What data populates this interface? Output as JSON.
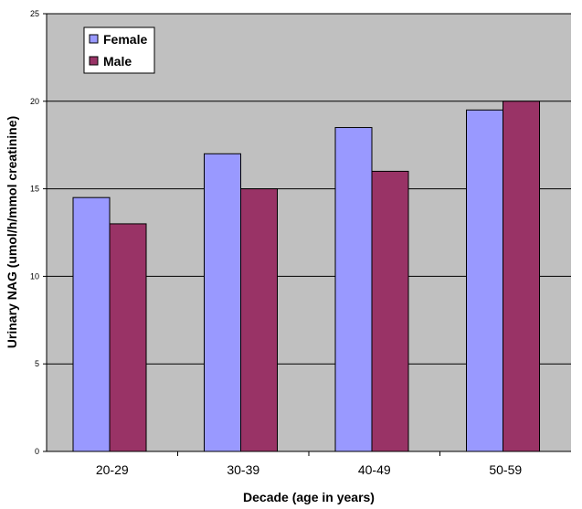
{
  "chart_data": {
    "type": "bar",
    "categories": [
      "20-29",
      "30-39",
      "40-49",
      "50-59"
    ],
    "series": [
      {
        "name": "Female",
        "values": [
          14.5,
          17,
          18.5,
          19.5
        ]
      },
      {
        "name": "Male",
        "values": [
          13,
          15,
          16,
          20
        ]
      }
    ],
    "xlabel": "Decade (age in years)",
    "ylabel": "Urinary NAG (umol/h/mmol creatinine)",
    "ylim": [
      0,
      25
    ],
    "yticks": [
      0,
      5,
      10,
      15,
      20,
      25
    ],
    "grid": true,
    "legend_position": "top-left"
  },
  "colors": {
    "plot_background": "#c0c0c0",
    "gridline": "#000000",
    "series": [
      "#9999ff",
      "#993366"
    ]
  }
}
